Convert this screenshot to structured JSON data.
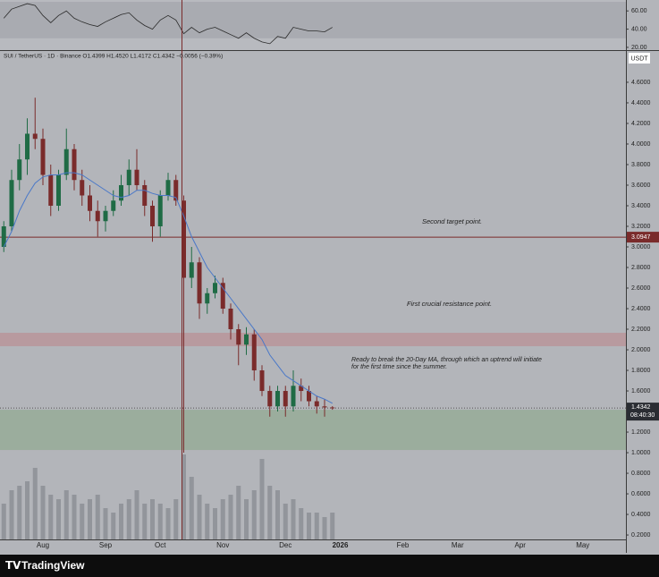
{
  "chart_data": [
    {
      "type": "candlestick",
      "title": "SUI / TetherUS · 1D · Binance  O1.4399  H1.4520  L1.4172  C1.4342  −0.0056 (−0.39%)",
      "currency": "USDT",
      "categories": [
        null,
        null,
        null,
        null,
        null,
        "Aug",
        null,
        null,
        null,
        null,
        null,
        null,
        null,
        "Sep",
        null,
        null,
        null,
        null,
        null,
        null,
        "Oct",
        null,
        null,
        null,
        null,
        null,
        null,
        null,
        "Nov",
        null,
        null,
        null,
        null,
        null,
        null,
        null,
        "Dec",
        null,
        null,
        null,
        null,
        null,
        null,
        "2026",
        null,
        null,
        null,
        null,
        null,
        null,
        null,
        "Feb",
        null,
        null,
        null,
        null,
        null,
        null,
        "Mar",
        null,
        null,
        null,
        null,
        null,
        null,
        null,
        "Apr",
        null,
        null,
        null,
        null,
        null,
        null,
        null,
        "May",
        null,
        null,
        null,
        null,
        null
      ],
      "open": [
        3.0,
        3.2,
        3.65,
        3.85,
        4.1,
        4.05,
        3.7,
        3.4,
        3.7,
        3.95,
        3.65,
        3.5,
        3.35,
        3.25,
        3.35,
        3.45,
        3.6,
        3.75,
        3.6,
        3.4,
        3.2,
        3.5,
        3.65,
        3.45,
        2.7,
        2.85,
        2.45,
        2.55,
        2.65,
        2.4,
        2.2,
        2.05,
        2.15,
        1.8,
        1.6,
        1.45,
        1.6,
        1.45,
        1.65,
        1.6,
        1.5,
        1.45,
        1.4399,
        null,
        null,
        null,
        null,
        null,
        null,
        null,
        null,
        null,
        null,
        null,
        null,
        null,
        null,
        null,
        null,
        null,
        null,
        null,
        null,
        null,
        null,
        null,
        null,
        null,
        null,
        null,
        null,
        null,
        null,
        null,
        null,
        null,
        null,
        null,
        null,
        null
      ],
      "high": [
        3.25,
        3.75,
        4.0,
        4.25,
        4.45,
        4.15,
        3.8,
        3.75,
        4.15,
        4.0,
        3.75,
        3.6,
        3.45,
        3.4,
        3.55,
        3.7,
        3.85,
        3.95,
        3.65,
        3.45,
        3.55,
        3.72,
        3.7,
        3.5,
        3.0,
        2.9,
        2.6,
        2.72,
        2.7,
        2.45,
        2.25,
        2.22,
        2.2,
        1.85,
        1.65,
        1.65,
        1.65,
        1.8,
        1.72,
        1.65,
        1.55,
        1.52,
        1.452,
        null,
        null,
        null,
        null,
        null,
        null,
        null,
        null,
        null,
        null,
        null,
        null,
        null,
        null,
        null,
        null,
        null,
        null,
        null,
        null,
        null,
        null,
        null,
        null,
        null,
        null,
        null,
        null,
        null,
        null,
        null,
        null,
        null,
        null,
        null,
        null,
        null
      ],
      "low": [
        2.95,
        3.15,
        3.55,
        3.7,
        3.95,
        3.6,
        3.3,
        3.35,
        3.65,
        3.55,
        3.4,
        3.25,
        3.1,
        3.15,
        3.3,
        3.4,
        3.5,
        3.55,
        3.3,
        3.05,
        3.1,
        3.45,
        3.4,
        1.0,
        2.6,
        2.3,
        2.35,
        2.5,
        2.35,
        2.1,
        1.85,
        1.95,
        1.7,
        1.55,
        1.35,
        1.4,
        1.35,
        1.4,
        1.5,
        1.45,
        1.38,
        1.35,
        1.4172,
        null,
        null,
        null,
        null,
        null,
        null,
        null,
        null,
        null,
        null,
        null,
        null,
        null,
        null,
        null,
        null,
        null,
        null,
        null,
        null,
        null,
        null,
        null,
        null,
        null,
        null,
        null,
        null,
        null,
        null,
        null,
        null,
        null,
        null,
        null,
        null,
        null
      ],
      "close": [
        3.2,
        3.65,
        3.85,
        4.1,
        4.05,
        3.7,
        3.4,
        3.7,
        3.95,
        3.65,
        3.5,
        3.35,
        3.25,
        3.35,
        3.45,
        3.6,
        3.75,
        3.6,
        3.4,
        3.2,
        3.5,
        3.65,
        3.45,
        2.7,
        2.85,
        2.45,
        2.55,
        2.65,
        2.4,
        2.2,
        2.05,
        2.15,
        1.8,
        1.6,
        1.45,
        1.6,
        1.45,
        1.65,
        1.6,
        1.5,
        1.45,
        1.44,
        1.4342,
        null,
        null,
        null,
        null,
        null,
        null,
        null,
        null,
        null,
        null,
        null,
        null,
        null,
        null,
        null,
        null,
        null,
        null,
        null,
        null,
        null,
        null,
        null,
        null,
        null,
        null,
        null,
        null,
        null,
        null,
        null,
        null,
        null,
        null,
        null,
        null,
        null
      ],
      "ma": [
        3.0,
        3.15,
        3.35,
        3.5,
        3.62,
        3.68,
        3.7,
        3.7,
        3.72,
        3.72,
        3.7,
        3.65,
        3.6,
        3.55,
        3.5,
        3.48,
        3.5,
        3.55,
        3.55,
        3.52,
        3.5,
        3.5,
        3.48,
        3.3,
        3.1,
        2.95,
        2.8,
        2.7,
        2.6,
        2.5,
        2.4,
        2.3,
        2.2,
        2.1,
        1.95,
        1.85,
        1.75,
        1.7,
        1.65,
        1.6,
        1.55,
        1.52,
        1.48,
        null,
        null,
        null,
        null,
        null,
        null,
        null,
        null,
        null,
        null,
        null,
        null,
        null,
        null,
        null,
        null,
        null,
        null,
        null,
        null,
        null,
        null,
        null,
        null,
        null,
        null,
        null,
        null,
        null,
        null,
        null,
        null,
        null,
        null,
        null,
        null,
        null
      ],
      "volume": [
        40,
        55,
        60,
        65,
        80,
        60,
        50,
        45,
        55,
        50,
        40,
        45,
        50,
        35,
        30,
        40,
        45,
        55,
        40,
        45,
        40,
        35,
        45,
        95,
        70,
        50,
        40,
        35,
        45,
        50,
        60,
        45,
        55,
        90,
        60,
        55,
        40,
        45,
        35,
        30,
        30,
        25,
        30,
        null,
        null,
        null,
        null,
        null,
        null,
        null,
        null,
        null,
        null,
        null,
        null,
        null,
        null,
        null,
        null,
        null,
        null,
        null,
        null,
        null,
        null,
        null,
        null,
        null,
        null,
        null,
        null,
        null,
        null,
        null,
        null,
        null,
        null,
        null,
        null,
        null
      ],
      "up_color": "#1f6b45",
      "down_color": "#7a2b2b",
      "ma_color": "#4a78c8",
      "volume_color": "#8a8d94",
      "ylim": [
        0.157,
        4.904
      ],
      "yticks": [
        {
          "value": 0.2,
          "label": "0.2000"
        },
        {
          "value": 0.4,
          "label": "0.4000"
        },
        {
          "value": 0.6,
          "label": "0.6000"
        },
        {
          "value": 0.8,
          "label": "0.8000"
        },
        {
          "value": 1.0,
          "label": "1.0000"
        },
        {
          "value": 1.2,
          "label": "1.2000"
        },
        {
          "value": 1.4,
          "label": "1.4000"
        },
        {
          "value": 1.6,
          "label": "1.6000"
        },
        {
          "value": 1.8,
          "label": "1.8000"
        },
        {
          "value": 2.0,
          "label": "2.0000"
        },
        {
          "value": 2.2,
          "label": "2.2000"
        },
        {
          "value": 2.4,
          "label": "2.4000"
        },
        {
          "value": 2.6,
          "label": "2.6000"
        },
        {
          "value": 2.8,
          "label": "2.8000"
        },
        {
          "value": 3.0,
          "label": "3.0000"
        },
        {
          "value": 3.2,
          "label": "3.2000"
        },
        {
          "value": 3.4,
          "label": "3.4000"
        },
        {
          "value": 3.6,
          "label": "3.6000"
        },
        {
          "value": 3.8,
          "label": "3.8000"
        },
        {
          "value": 4.0,
          "label": "4.0000"
        },
        {
          "value": 4.2,
          "label": "4.2000"
        },
        {
          "value": 4.4,
          "label": "4.4000"
        },
        {
          "value": 4.6,
          "label": "4.6000"
        }
      ],
      "level": 3.0947,
      "level_color": "#7a2b2b",
      "last_price": 1.4342,
      "countdown": "08:40:30",
      "zones": [
        {
          "from": 2.035,
          "to": 2.165,
          "color": "#b9959a"
        },
        {
          "from": 1.026,
          "to": 1.417,
          "color": "#96ab98"
        }
      ],
      "annotations": [
        "Second target point.",
        "First crucial resistance point.",
        "Ready to break the 20-Day MA, through which an uptrend will initiate",
        "for the first time since the summer."
      ]
    },
    {
      "type": "line",
      "values": [
        52,
        62,
        65,
        68,
        66,
        55,
        47,
        55,
        60,
        52,
        48,
        45,
        43,
        48,
        52,
        56,
        58,
        50,
        44,
        40,
        50,
        55,
        50,
        35,
        42,
        36,
        40,
        42,
        38,
        34,
        30,
        36,
        30,
        26,
        24,
        32,
        30,
        42,
        40,
        38,
        38,
        37,
        42
      ],
      "color": "#2a2a2a",
      "band": [
        30,
        70
      ],
      "ylim": [
        17,
        72
      ],
      "yticks": [
        {
          "value": 20,
          "label": "20.00"
        },
        {
          "value": 40,
          "label": "40.00"
        },
        {
          "value": 60,
          "label": "60.00"
        }
      ]
    }
  ],
  "footer": {
    "brand": "TradingView"
  }
}
